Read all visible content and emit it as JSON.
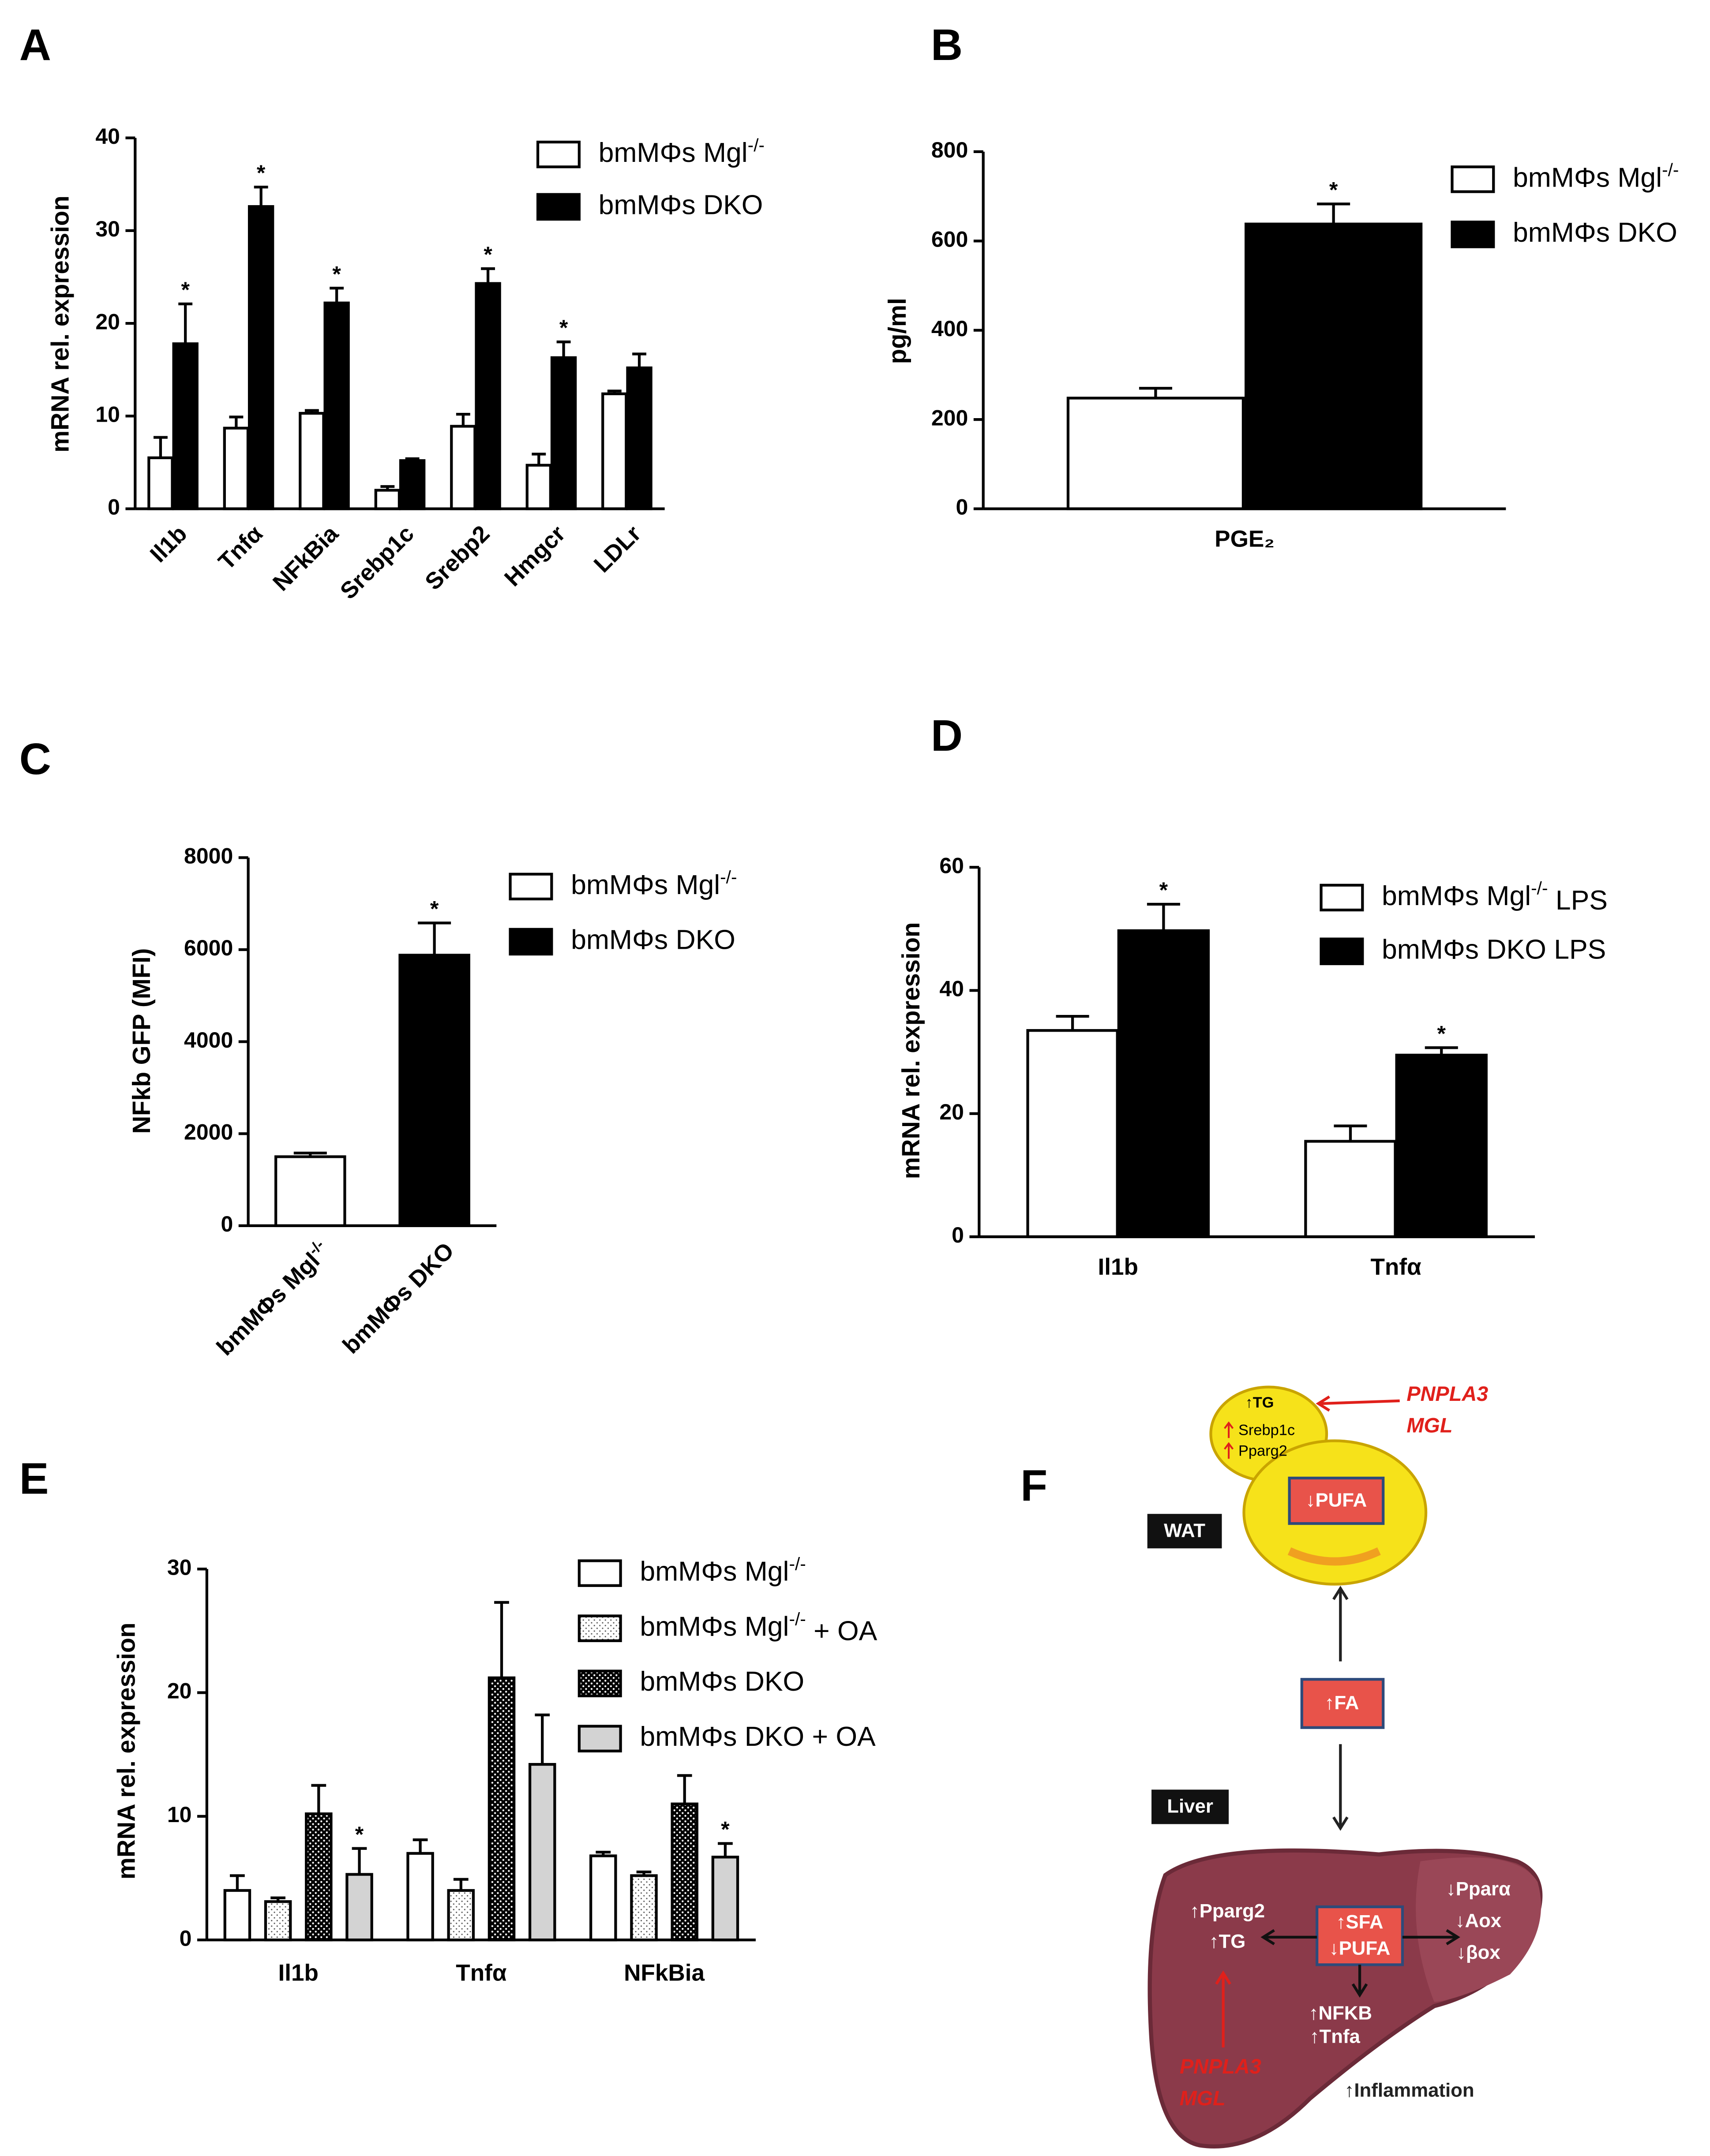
{
  "chart_data": [
    {
      "type": "bar",
      "panel": "A",
      "ylabel": "mRNA rel. expression",
      "categories": [
        "Il1b",
        "Tnfα",
        "NFkBia",
        "Srebp1c",
        "Srebp2",
        "Hmgcr",
        "LDLr"
      ],
      "ylim": [
        0,
        40
      ],
      "yticks": [
        0,
        10,
        20,
        30,
        40
      ],
      "series": [
        {
          "name": "bmMΦs Mgl-/-",
          "color": "#ffffff",
          "values": [
            5.5,
            8.7,
            10.3,
            2.0,
            8.9,
            4.7,
            12.4
          ],
          "errors": [
            2.2,
            1.2,
            0.3,
            0.4,
            1.3,
            1.2,
            0.3
          ],
          "labels": [
            null,
            null,
            null,
            null,
            null,
            null,
            null
          ]
        },
        {
          "name": "bmMΦs DKO",
          "color": "#000000",
          "values": [
            17.8,
            32.6,
            22.2,
            5.2,
            24.3,
            16.3,
            15.2
          ],
          "errors": [
            4.3,
            2.1,
            1.6,
            0.2,
            1.6,
            1.7,
            1.5
          ],
          "labels": [
            "*",
            "*",
            "*",
            null,
            "*",
            "*",
            null
          ]
        }
      ]
    },
    {
      "type": "bar",
      "panel": "B",
      "ylabel": "pg/ml",
      "categories": [
        "PGE₂"
      ],
      "ylim": [
        0,
        800
      ],
      "yticks": [
        0,
        200,
        400,
        600,
        800
      ],
      "series": [
        {
          "name": "bmMΦs Mgl-/-",
          "color": "#ffffff",
          "values": [
            248
          ],
          "errors": [
            22
          ],
          "labels": [
            null
          ]
        },
        {
          "name": "bmMΦs DKO",
          "color": "#000000",
          "values": [
            638
          ],
          "errors": [
            45
          ],
          "labels": [
            "*"
          ]
        }
      ]
    },
    {
      "type": "bar",
      "panel": "C",
      "ylabel": "NFkb GFP (MFI)",
      "categories": [
        "bmMΦs Mgl-/-",
        "bmMΦs DKO"
      ],
      "ylim": [
        0,
        8000
      ],
      "yticks": [
        0,
        2000,
        4000,
        6000,
        8000
      ],
      "series": [
        {
          "name": "bmMΦs Mgl-/-",
          "color": "#ffffff",
          "values": [
            1500,
            null
          ],
          "errors": [
            80,
            null
          ],
          "labels": [
            null,
            null
          ]
        },
        {
          "name": "bmMΦs DKO",
          "color": "#000000",
          "values": [
            null,
            5880
          ],
          "errors": [
            null,
            700
          ],
          "labels": [
            null,
            "*"
          ]
        }
      ]
    },
    {
      "type": "bar",
      "panel": "D",
      "ylabel": "mRNA rel. expression",
      "categories": [
        "Il1b",
        "Tnfα"
      ],
      "ylim": [
        0,
        60
      ],
      "yticks": [
        0,
        20,
        40,
        60
      ],
      "series": [
        {
          "name": "bmMΦs Mgl-/- LPS",
          "color": "#ffffff",
          "values": [
            33.5,
            15.5
          ],
          "errors": [
            2.3,
            2.5
          ],
          "labels": [
            null,
            null
          ]
        },
        {
          "name": "bmMΦs DKO LPS",
          "color": "#000000",
          "values": [
            49.7,
            29.5
          ],
          "errors": [
            4.3,
            1.2
          ],
          "labels": [
            "*",
            "*"
          ]
        }
      ]
    },
    {
      "type": "bar",
      "panel": "E",
      "ylabel": "mRNA rel. expression",
      "categories": [
        "Il1b",
        "Tnfα",
        "NFkBia"
      ],
      "ylim": [
        0,
        30
      ],
      "yticks": [
        0,
        10,
        20,
        30
      ],
      "series": [
        {
          "name": "bmMΦs Mgl-/-",
          "color": "#ffffff",
          "values": [
            4.0,
            7.0,
            6.8
          ],
          "errors": [
            1.2,
            1.1,
            0.3
          ],
          "labels": [
            null,
            null,
            null
          ]
        },
        {
          "name": "bmMΦs Mgl-/- + OA",
          "color": "#ffffff",
          "pattern": "dots",
          "values": [
            3.1,
            4.0,
            5.2
          ],
          "errors": [
            0.3,
            0.9,
            0.3
          ],
          "labels": [
            null,
            null,
            null
          ]
        },
        {
          "name": "bmMΦs DKO",
          "color": "#000000",
          "pattern": "dots",
          "values": [
            10.2,
            21.2,
            11.0
          ],
          "errors": [
            2.3,
            6.1,
            2.3
          ],
          "labels": [
            null,
            null,
            null
          ]
        },
        {
          "name": "bmMΦs DKO + OA",
          "color": "#d3d3d3",
          "values": [
            5.3,
            14.2,
            6.7
          ],
          "errors": [
            2.1,
            4.0,
            1.1
          ],
          "labels": [
            "*",
            null,
            "*"
          ]
        }
      ]
    }
  ],
  "diagram": {
    "panel": "F",
    "wat": "WAT",
    "liver": "Liver",
    "wat_cell": {
      "tg": "↑TG",
      "srebp1c": "Srebp1c",
      "pparg2": "Pparg2",
      "pufa": "↓PUFA",
      "enzyme1": "PNPLA3",
      "enzyme2": "MGL"
    },
    "fa": "↑FA",
    "liver_cell": {
      "pparg2": "↑Pparg2",
      "tg": "↑TG",
      "sfa": "↑SFA",
      "pufa": "↓PUFA",
      "ppara": "↓Pparα",
      "aox": "↓Aox",
      "box": "↓βox",
      "nfkb": "↑NFKB",
      "tnfa": "↑Tnfa",
      "enzyme1": "PNPLA3",
      "enzyme2": "MGL",
      "inflammation": "↑Inflammation"
    }
  }
}
